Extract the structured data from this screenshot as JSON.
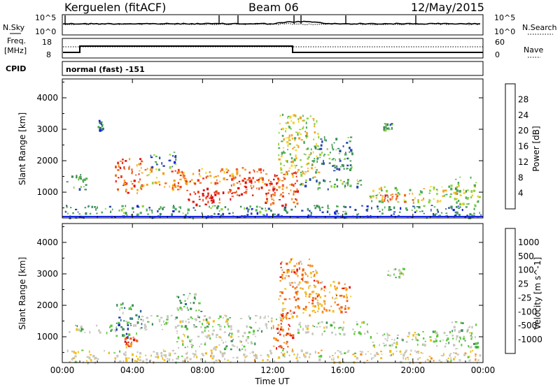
{
  "header": {
    "station": "Kerguelen (fitACF)",
    "beam": "Beam 06",
    "date": "12/May/2015"
  },
  "top_panel": {
    "left_label": "N.Sky",
    "right_label": "N.Search",
    "left_ticks": [
      "10^5",
      "10^0"
    ],
    "right_ticks": [
      "10^5",
      "10^0"
    ]
  },
  "freq_panel": {
    "left_label_1": "Freq.",
    "left_label_2": "[MHz]",
    "left_ticks": [
      "18",
      "8"
    ],
    "right_label": "Nave",
    "right_ticks": [
      "60",
      "0"
    ],
    "cpid_label": "CPID",
    "mode": "normal (fast) -151"
  },
  "chart_data": [
    {
      "type": "heatmap",
      "name": "power",
      "ylabel": "Slant Range [km]",
      "xlabel": "",
      "x_ticks": [
        "00:00",
        "04:00",
        "08:00",
        "12:00",
        "16:00",
        "20:00",
        "00:00"
      ],
      "xlim_hours": [
        0,
        24
      ],
      "ylim": [
        180,
        4600
      ],
      "y_ticks": [
        1000,
        2000,
        3000,
        4000
      ],
      "colorbar": {
        "label": "Power [dB]",
        "ticks": [
          "4",
          "8",
          "12",
          "16",
          "20",
          "24",
          "28"
        ],
        "colors": [
          "#0a14e6",
          "#2a49a8",
          "#3c8c5a",
          "#4eaa5a",
          "#8fd23a",
          "#f0d42a",
          "#f5a020",
          "#f07020",
          "#ee3a1c",
          "#e01010"
        ]
      },
      "regions": [
        {
          "t0": 0.1,
          "t1": 23.9,
          "r0": 200,
          "r1": 600,
          "level": 0.25
        },
        {
          "t0": 0.2,
          "t1": 1.5,
          "r0": 1100,
          "r1": 1600,
          "level": 0.35
        },
        {
          "t0": 3.0,
          "t1": 4.5,
          "r0": 950,
          "r1": 2100,
          "level": 0.8
        },
        {
          "t0": 4.4,
          "t1": 5.5,
          "r0": 1200,
          "r1": 1800,
          "level": 0.55
        },
        {
          "t0": 5.5,
          "t1": 7.0,
          "r0": 1100,
          "r1": 1700,
          "level": 0.7
        },
        {
          "t0": 6.5,
          "t1": 11.6,
          "r0": 1300,
          "r1": 1800,
          "level": 0.72
        },
        {
          "t0": 7.0,
          "t1": 8.5,
          "r0": 600,
          "r1": 1200,
          "level": 0.95
        },
        {
          "t0": 8.2,
          "t1": 9.8,
          "r0": 650,
          "r1": 1100,
          "level": 0.92
        },
        {
          "t0": 9.5,
          "t1": 12.3,
          "r0": 900,
          "r1": 1500,
          "level": 0.85
        },
        {
          "t0": 11.5,
          "t1": 13.4,
          "r0": 600,
          "r1": 1700,
          "level": 0.8
        },
        {
          "t0": 12.3,
          "t1": 14.6,
          "r0": 1500,
          "r1": 3500,
          "level": 0.5
        },
        {
          "t0": 14.2,
          "t1": 16.5,
          "r0": 1700,
          "r1": 2800,
          "level": 0.3
        },
        {
          "t0": 13.5,
          "t1": 17.0,
          "r0": 1100,
          "r1": 1500,
          "level": 0.35
        },
        {
          "t0": 17.5,
          "t1": 22.0,
          "r0": 700,
          "r1": 1200,
          "level": 0.5
        },
        {
          "t0": 18.0,
          "t1": 20.0,
          "r0": 700,
          "r1": 950,
          "level": 0.8
        },
        {
          "t0": 22.0,
          "t1": 23.8,
          "r0": 600,
          "r1": 1500,
          "level": 0.45
        },
        {
          "t0": 2.0,
          "t1": 2.3,
          "r0": 3000,
          "r1": 3300,
          "level": 0.2
        },
        {
          "t0": 5.0,
          "t1": 6.5,
          "r0": 1800,
          "r1": 2300,
          "level": 0.25
        },
        {
          "t0": 18.3,
          "t1": 18.8,
          "r0": 3000,
          "r1": 3200,
          "level": 0.3
        }
      ]
    },
    {
      "type": "heatmap",
      "name": "velocity",
      "ylabel": "Slant Range [km]",
      "xlabel": "Time UT",
      "x_ticks": [
        "00:00",
        "04:00",
        "08:00",
        "12:00",
        "16:00",
        "20:00",
        "00:00"
      ],
      "xlim_hours": [
        0,
        24
      ],
      "ylim": [
        180,
        4600
      ],
      "y_ticks": [
        1000,
        2000,
        3000,
        4000
      ],
      "colorbar": {
        "label": "Velocity [m s^-1]",
        "ticks": [
          "1000",
          "500",
          "100",
          "25",
          "-25",
          "-100",
          "-500",
          "-1000"
        ],
        "colors": [
          "#1a2ab8",
          "#2a60a0",
          "#3c8c5a",
          "#5ac83a",
          "#c8c8c0",
          "#c8c8c0",
          "#f0c020",
          "#f59020",
          "#f06018",
          "#e01010"
        ]
      },
      "regions": [
        {
          "t0": 0.1,
          "t1": 23.9,
          "r0": 200,
          "r1": 600,
          "level": 0.55
        },
        {
          "t0": 0.2,
          "t1": 3.0,
          "r0": 1150,
          "r1": 1400,
          "level": 0.45
        },
        {
          "t0": 3.0,
          "t1": 4.5,
          "r0": 1000,
          "r1": 2100,
          "level": 0.25
        },
        {
          "t0": 3.5,
          "t1": 4.2,
          "r0": 700,
          "r1": 1000,
          "level": 0.8
        },
        {
          "t0": 4.5,
          "t1": 12.5,
          "r0": 1200,
          "r1": 1700,
          "level": 0.45
        },
        {
          "t0": 6.5,
          "t1": 11.0,
          "r0": 600,
          "r1": 1200,
          "level": 0.45
        },
        {
          "t0": 12.0,
          "t1": 13.2,
          "r0": 600,
          "r1": 1800,
          "level": 0.85
        },
        {
          "t0": 12.3,
          "t1": 14.6,
          "r0": 1600,
          "r1": 3500,
          "level": 0.75
        },
        {
          "t0": 13.4,
          "t1": 17.5,
          "r0": 1100,
          "r1": 1500,
          "level": 0.45
        },
        {
          "t0": 14.2,
          "t1": 16.5,
          "r0": 1800,
          "r1": 2800,
          "level": 0.75
        },
        {
          "t0": 17.5,
          "t1": 22.0,
          "r0": 700,
          "r1": 1200,
          "level": 0.45
        },
        {
          "t0": 22.0,
          "t1": 23.8,
          "r0": 600,
          "r1": 1500,
          "level": 0.45
        },
        {
          "t0": 6.5,
          "t1": 8.0,
          "r0": 1800,
          "r1": 2400,
          "level": 0.3
        },
        {
          "t0": 18.5,
          "t1": 19.5,
          "r0": 2900,
          "r1": 3200,
          "level": 0.45
        }
      ]
    }
  ]
}
